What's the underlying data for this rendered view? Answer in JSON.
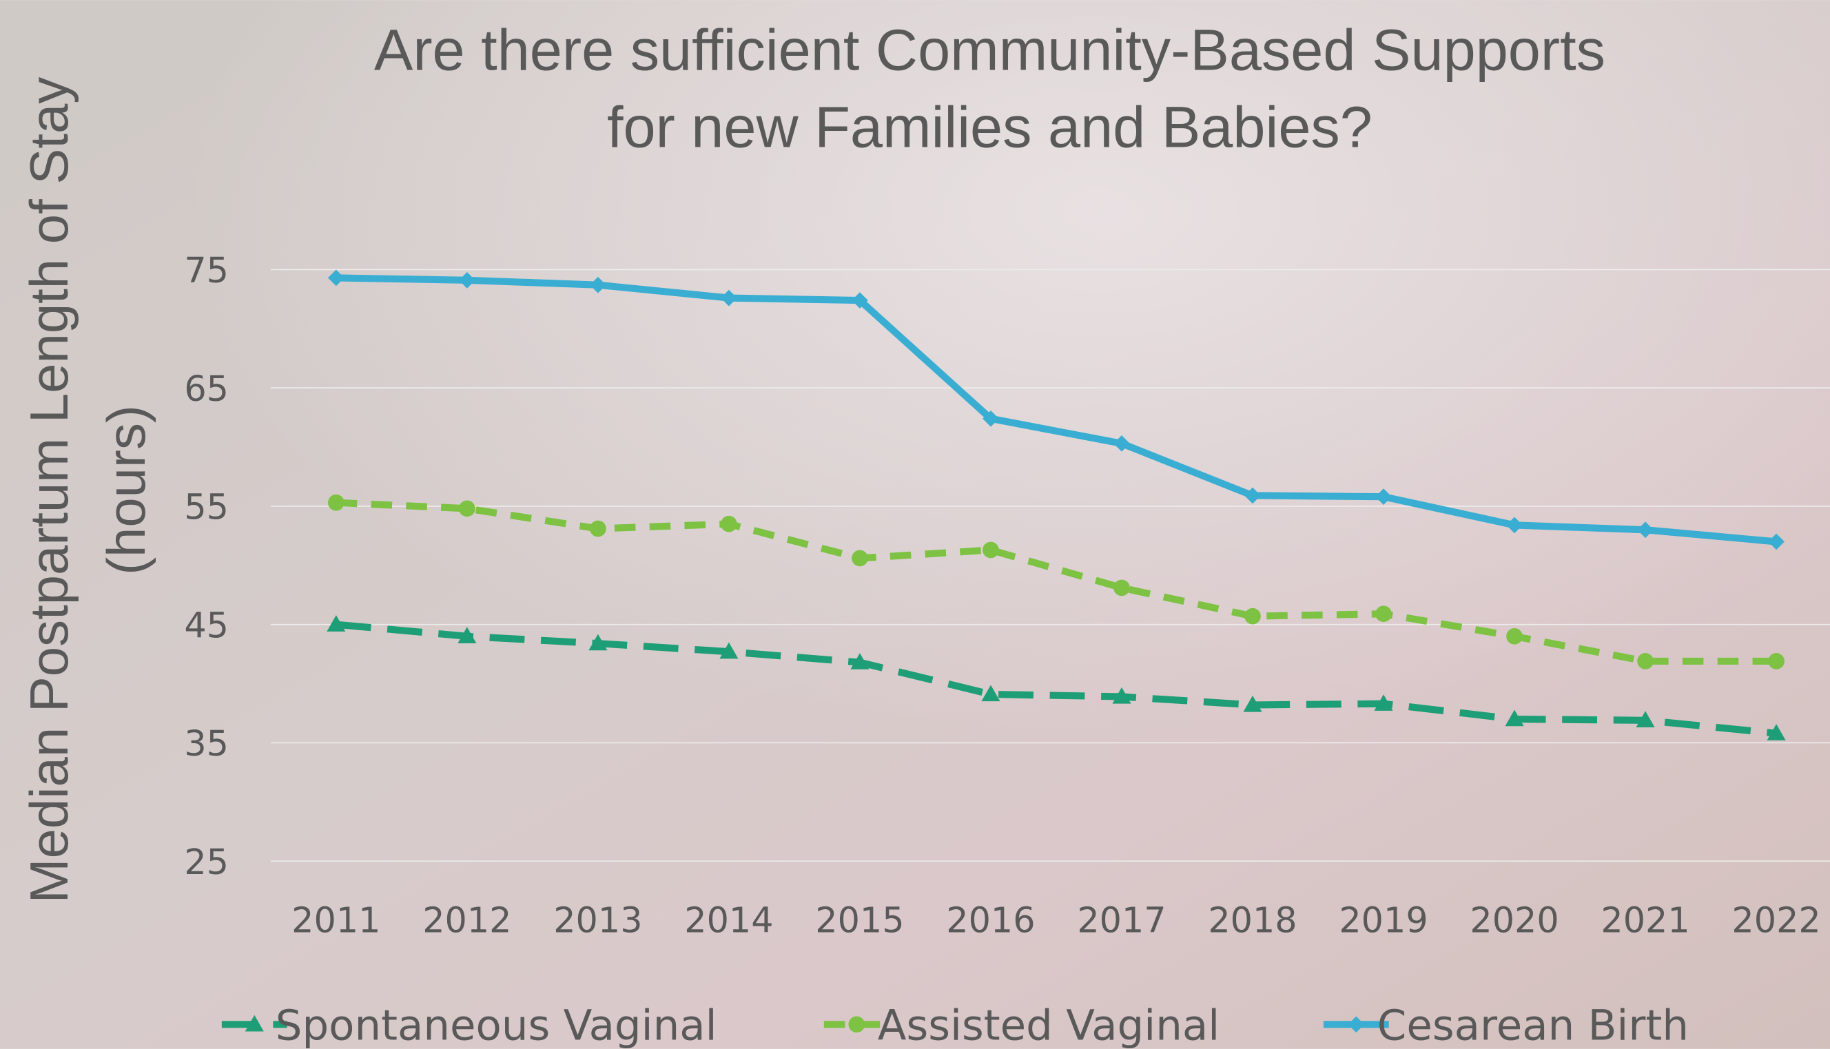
{
  "chart_data": {
    "type": "line",
    "title": [
      "Are there sufficient Community-Based Supports",
      "for new Families and Babies?"
    ],
    "y_label": [
      "Median Postpartum Length of Stay",
      "(hours)"
    ],
    "categories": [
      "2011",
      "2012",
      "2013",
      "2014",
      "2015",
      "2016",
      "2017",
      "2018",
      "2019",
      "2020",
      "2021",
      "2022"
    ],
    "series": [
      {
        "name": "Spontaneous Vaginal",
        "color": "#1e9e76",
        "marker": "triangle",
        "dash": "long-dash",
        "values": [
          45.0,
          44.0,
          43.4,
          42.7,
          41.8,
          39.1,
          38.9,
          38.2,
          38.3,
          37.0,
          36.9,
          35.8
        ]
      },
      {
        "name": "Assisted Vaginal",
        "color": "#7dc243",
        "marker": "circle",
        "dash": "dash",
        "values": [
          55.3,
          54.8,
          53.1,
          53.5,
          50.6,
          51.3,
          48.1,
          45.7,
          45.9,
          44.0,
          41.9,
          41.9
        ]
      },
      {
        "name": "Cesarean Birth",
        "color": "#3aadd2",
        "marker": "diamond",
        "dash": "solid",
        "values": [
          74.3,
          74.1,
          73.7,
          72.6,
          72.4,
          62.4,
          60.3,
          55.9,
          55.8,
          53.4,
          53.0,
          52.0
        ]
      }
    ],
    "ylim": [
      25,
      75
    ],
    "yticks": [
      25,
      35,
      45,
      55,
      65,
      75
    ],
    "grid": true,
    "legend": "bottom"
  }
}
